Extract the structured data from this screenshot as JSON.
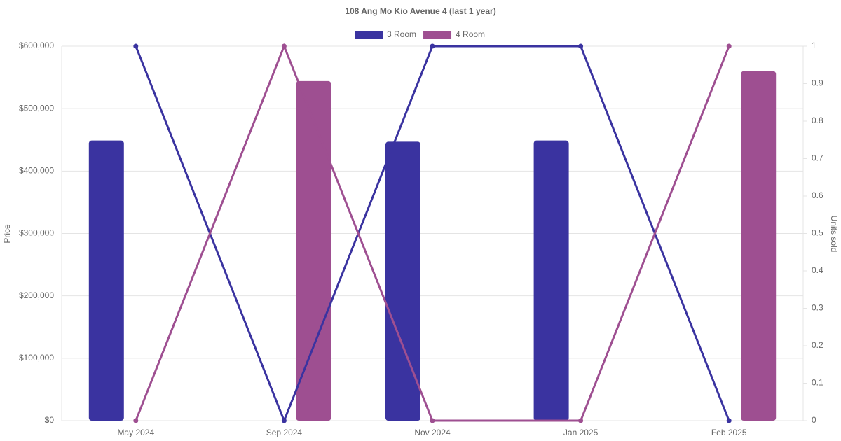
{
  "chart_data": {
    "type": "bar-line",
    "title": "108 Ang Mo Kio Avenue 4 (last 1 year)",
    "ylabel": "Price",
    "y2label": "Units sold",
    "categories": [
      "May 2024",
      "Sep 2024",
      "Nov 2024",
      "Jan 2025",
      "Feb 2025"
    ],
    "series": [
      {
        "name": "3 Room",
        "color": "#3a33a0",
        "values": [
          449000,
          null,
          447000,
          449000,
          null
        ],
        "y2_values": [
          1,
          0,
          1,
          1,
          0
        ]
      },
      {
        "name": "4 Room",
        "color": "#9e4f91",
        "values": [
          null,
          544000,
          null,
          null,
          560000
        ],
        "y2_values": [
          0,
          1,
          0,
          0,
          1
        ]
      }
    ],
    "ylim": [
      0,
      600000
    ],
    "yticks": [
      {
        "value": 0,
        "label": "$0"
      },
      {
        "value": 100000,
        "label": "$100,000"
      },
      {
        "value": 200000,
        "label": "$200,000"
      },
      {
        "value": 300000,
        "label": "$300,000"
      },
      {
        "value": 400000,
        "label": "$400,000"
      },
      {
        "value": 500000,
        "label": "$500,000"
      },
      {
        "value": 600000,
        "label": "$600,000"
      }
    ],
    "y2lim": [
      0,
      1
    ],
    "y2ticks": [
      0,
      0.1,
      0.2,
      0.3,
      0.4,
      0.5,
      0.6,
      0.7,
      0.8,
      0.9,
      1
    ],
    "grid": true
  }
}
